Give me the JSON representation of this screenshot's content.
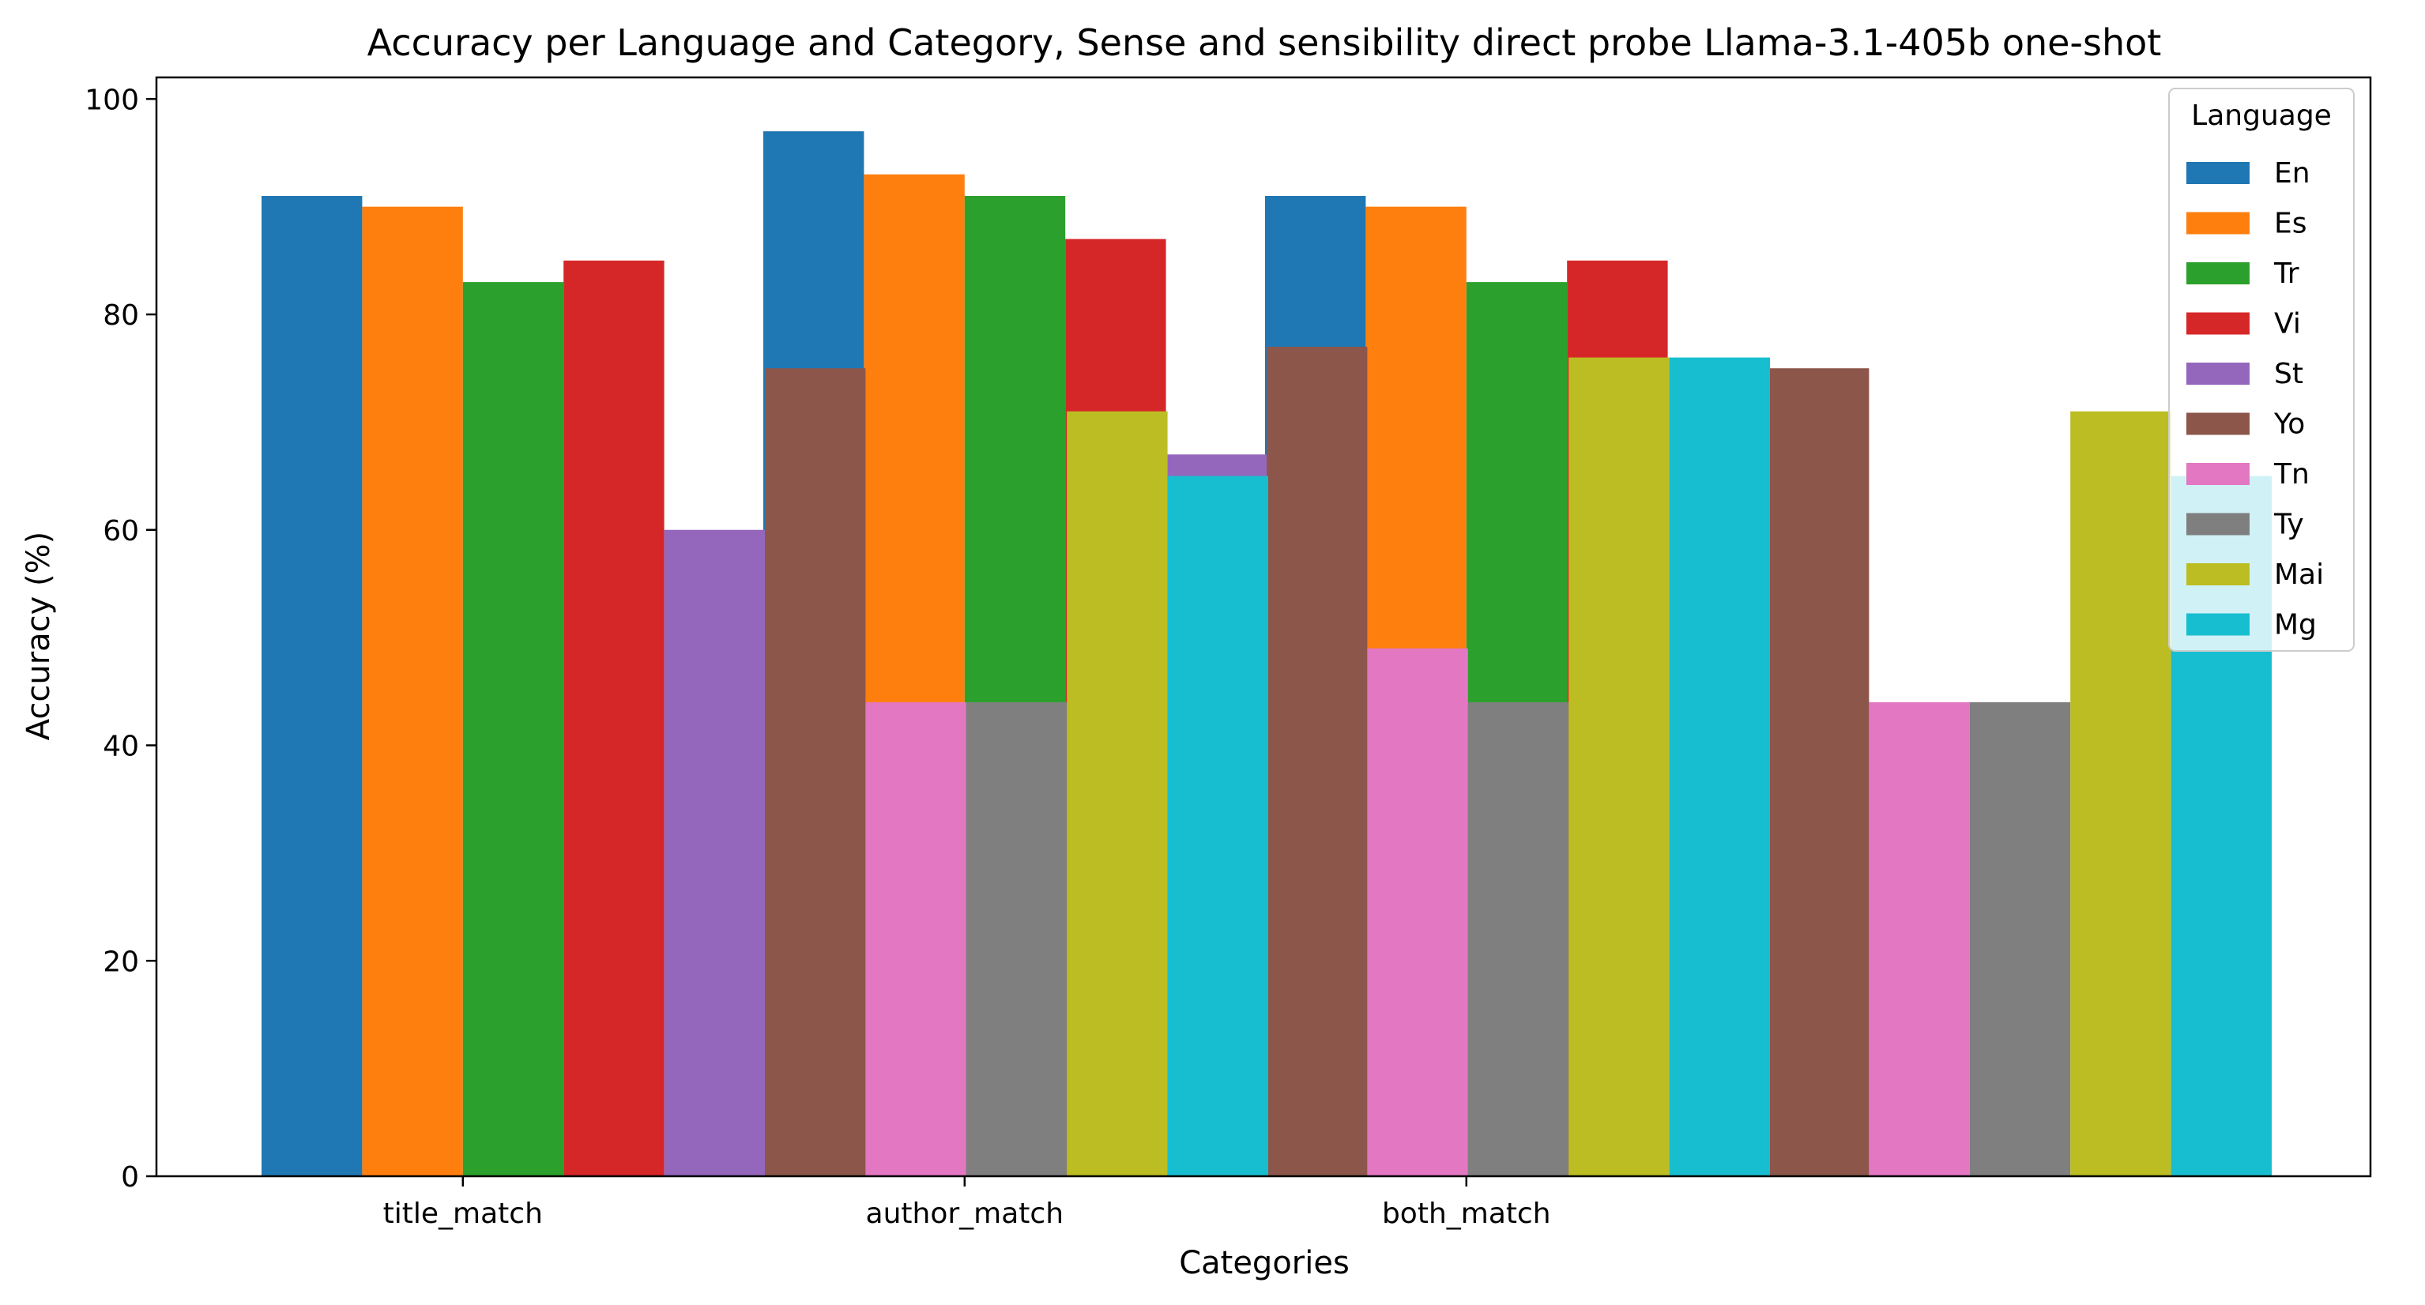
{
  "chart_data": {
    "type": "bar",
    "title": "Accuracy per Language and Category, Sense and sensibility direct probe Llama-3.1-405b one-shot",
    "xlabel": "Categories",
    "ylabel": "Accuracy (%)",
    "ylim": [
      0,
      102
    ],
    "yticks": [
      0,
      20,
      40,
      60,
      80,
      100
    ],
    "categories": [
      "title_match",
      "author_match",
      "both_match"
    ],
    "legend": {
      "title": "Language",
      "position": "top-right"
    },
    "series": [
      {
        "name": "En",
        "color": "#1f77b4",
        "values": [
          91,
          97,
          91
        ]
      },
      {
        "name": "Es",
        "color": "#ff7f0e",
        "values": [
          90,
          93,
          90
        ]
      },
      {
        "name": "Tr",
        "color": "#2ca02c",
        "values": [
          83,
          91,
          83
        ]
      },
      {
        "name": "Vi",
        "color": "#d62728",
        "values": [
          85,
          87,
          85
        ]
      },
      {
        "name": "St",
        "color": "#9467bd",
        "values": [
          60,
          67,
          0
        ]
      },
      {
        "name": "Yo",
        "color": "#8c564b",
        "values": [
          75,
          77,
          75
        ]
      },
      {
        "name": "Tn",
        "color": "#e377c2",
        "values": [
          44,
          49,
          44
        ]
      },
      {
        "name": "Ty",
        "color": "#7f7f7f",
        "values": [
          44,
          44,
          44
        ]
      },
      {
        "name": "Mai",
        "color": "#bcbd22",
        "values": [
          71,
          76,
          71
        ]
      },
      {
        "name": "Mg",
        "color": "#17becf",
        "values": [
          65,
          76,
          65
        ]
      }
    ]
  }
}
